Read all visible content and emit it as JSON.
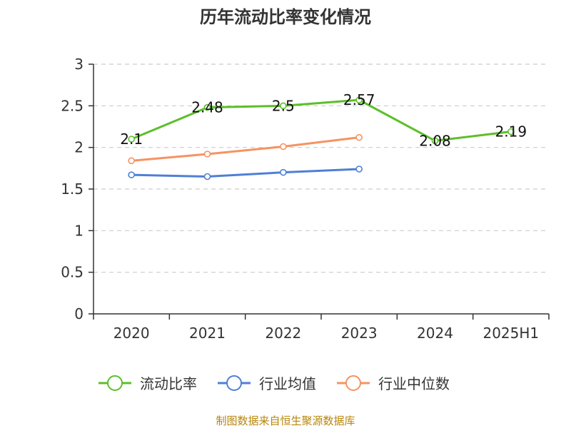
{
  "chart_data": {
    "type": "line",
    "title": "历年流动比率变化情况",
    "categories": [
      "2020",
      "2021",
      "2022",
      "2023",
      "2024",
      "2025H1"
    ],
    "ylim": [
      0,
      3
    ],
    "yticks": [
      "0",
      "0.5",
      "1",
      "1.5",
      "2",
      "2.5",
      "3"
    ],
    "grid": true,
    "legend_position": "bottom",
    "series": [
      {
        "name": "流动比率",
        "color": "#5cbf2a",
        "values": [
          2.1,
          2.48,
          2.5,
          2.57,
          2.08,
          2.19
        ],
        "labels": [
          "2.1",
          "2.48",
          "2.5",
          "2.57",
          "2.08",
          "2.19"
        ]
      },
      {
        "name": "行业均值",
        "color": "#4f7fd6",
        "values": [
          1.67,
          1.65,
          1.7,
          1.74,
          null,
          null
        ]
      },
      {
        "name": "行业中位数",
        "color": "#f59361",
        "values": [
          1.84,
          1.92,
          2.01,
          2.12,
          null,
          null
        ]
      }
    ]
  },
  "source": "制图数据来自恒生聚源数据库"
}
